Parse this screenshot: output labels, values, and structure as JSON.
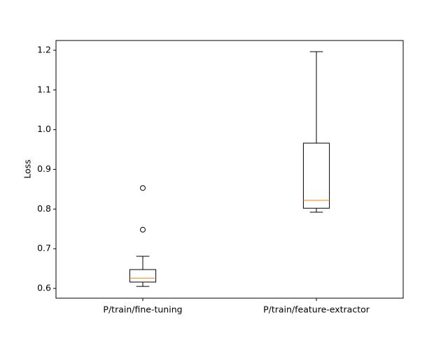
{
  "chart_data": {
    "type": "box",
    "ylabel": "Loss",
    "categories": [
      "P/train/fine-tuning",
      "P/train/feature-extractor"
    ],
    "boxes": [
      {
        "whislo": 0.605,
        "q1": 0.616,
        "med": 0.626,
        "q3": 0.6475,
        "whishi": 0.681,
        "fliers": [
          0.748,
          0.853
        ]
      },
      {
        "whislo": 0.792,
        "q1": 0.802,
        "med": 0.822,
        "q3": 0.966,
        "whishi": 1.1965,
        "fliers": []
      }
    ],
    "color": "#000000",
    "median_color": "#ff7f0e",
    "ylim": [
      0.5754,
      1.2246
    ],
    "yticks": [
      0.6,
      0.7,
      0.8,
      0.9,
      {
        "value": 1,
        "label": "1.0"
      },
      1.1,
      1.2
    ]
  }
}
